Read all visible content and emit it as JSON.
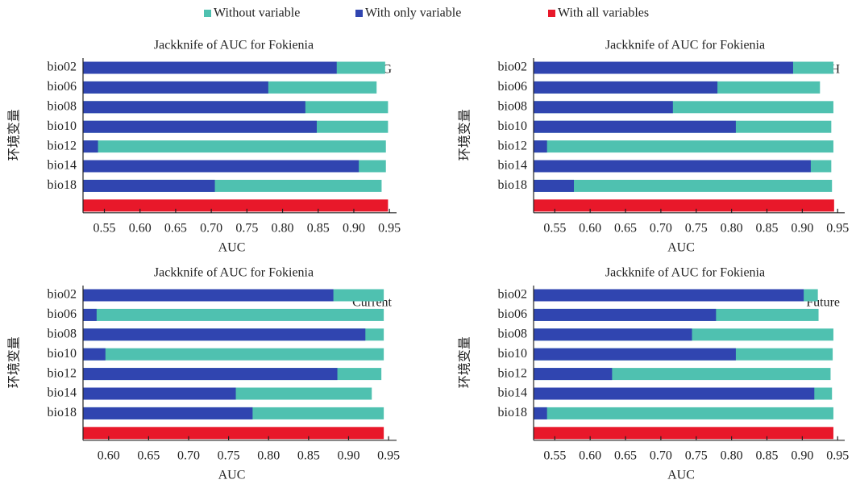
{
  "legend": [
    {
      "name": "Without variable",
      "color": "#4fc1b0"
    },
    {
      "name": "With only variable",
      "color": "#3045b0"
    },
    {
      "name": "With all variables",
      "color": "#e8182a"
    }
  ],
  "chart_data": [
    {
      "type": "bar",
      "title": "Jackknife of AUC for Fokienia",
      "annotation": "LIG",
      "xlabel": "AUC",
      "ylabel": "环境变量",
      "categories": [
        "bio02",
        "bio06",
        "bio08",
        "bio10",
        "bio12",
        "bio14",
        "bio18"
      ],
      "series": [
        {
          "values": [
            0.944,
            0.932,
            0.948,
            0.948,
            0.945,
            0.945,
            0.939
          ]
        },
        {
          "values": [
            0.876,
            0.78,
            0.832,
            0.848,
            0.541,
            0.907,
            0.705
          ]
        }
      ],
      "all_variables": 0.948,
      "xlim": [
        0.52,
        0.96
      ],
      "xticks": [
        0.55,
        {
          "value": 0.6,
          "label": "0.60"
        },
        0.65,
        {
          "value": 0.7,
          "label": "0.70"
        },
        0.75,
        {
          "value": 0.8,
          "label": "0.80"
        },
        0.85,
        {
          "value": 0.9,
          "label": "0.90"
        },
        0.95
      ]
    },
    {
      "type": "bar",
      "title": "Jackknife of AUC for Fokienia",
      "annotation": "MH",
      "xlabel": "AUC",
      "ylabel": "环境变量",
      "categories": [
        "bio02",
        "bio06",
        "bio08",
        "bio10",
        "bio12",
        "bio14",
        "bio18"
      ],
      "series": [
        {
          "values": [
            0.944,
            0.925,
            0.944,
            0.941,
            0.944,
            0.941,
            0.942
          ]
        },
        {
          "values": [
            0.887,
            0.78,
            0.717,
            0.806,
            0.539,
            0.912,
            0.577
          ]
        }
      ],
      "all_variables": 0.945,
      "xlim": [
        0.52,
        0.96
      ],
      "xticks": [
        0.55,
        {
          "value": 0.6,
          "label": "0.60"
        },
        0.65,
        {
          "value": 0.7,
          "label": "0.70"
        },
        0.75,
        {
          "value": 0.8,
          "label": "0.80"
        },
        0.85,
        {
          "value": 0.9,
          "label": "0.90"
        },
        0.95
      ]
    },
    {
      "type": "bar",
      "title": "Jackknife of AUC for Fokienia",
      "annotation": "Current",
      "xlabel": "AUC",
      "ylabel": "环境变量",
      "categories": [
        "bio02",
        "bio06",
        "bio08",
        "bio10",
        "bio12",
        "bio14",
        "bio18"
      ],
      "series": [
        {
          "values": [
            0.944,
            0.944,
            0.944,
            0.944,
            0.941,
            0.929,
            0.944
          ]
        },
        {
          "values": [
            0.881,
            0.585,
            0.921,
            0.596,
            0.886,
            0.759,
            0.78
          ]
        }
      ],
      "all_variables": 0.944,
      "xlim": [
        0.568,
        0.96
      ],
      "xticks": [
        {
          "value": 0.6,
          "label": "0.60"
        },
        0.65,
        {
          "value": 0.7,
          "label": "0.70"
        },
        0.75,
        {
          "value": 0.8,
          "label": "0.80"
        },
        0.85,
        {
          "value": 0.9,
          "label": "0.90"
        },
        0.95
      ]
    },
    {
      "type": "bar",
      "title": "Jackknife of AUC for Fokienia",
      "annotation": "Future",
      "xlabel": "AUC",
      "ylabel": "环境变量",
      "categories": [
        "bio02",
        "bio06",
        "bio08",
        "bio10",
        "bio12",
        "bio14",
        "bio18"
      ],
      "series": [
        {
          "values": [
            0.922,
            0.923,
            0.944,
            0.943,
            0.94,
            0.942,
            0.944
          ]
        },
        {
          "values": [
            0.902,
            0.778,
            0.744,
            0.806,
            0.631,
            0.917,
            0.539
          ]
        }
      ],
      "all_variables": 0.944,
      "xlim": [
        0.52,
        0.96
      ],
      "xticks": [
        0.55,
        {
          "value": 0.6,
          "label": "0.60"
        },
        0.65,
        {
          "value": 0.7,
          "label": "0.70"
        },
        0.75,
        {
          "value": 0.8,
          "label": "0.80"
        },
        0.85,
        {
          "value": 0.9,
          "label": "0.90"
        },
        0.95
      ]
    }
  ]
}
